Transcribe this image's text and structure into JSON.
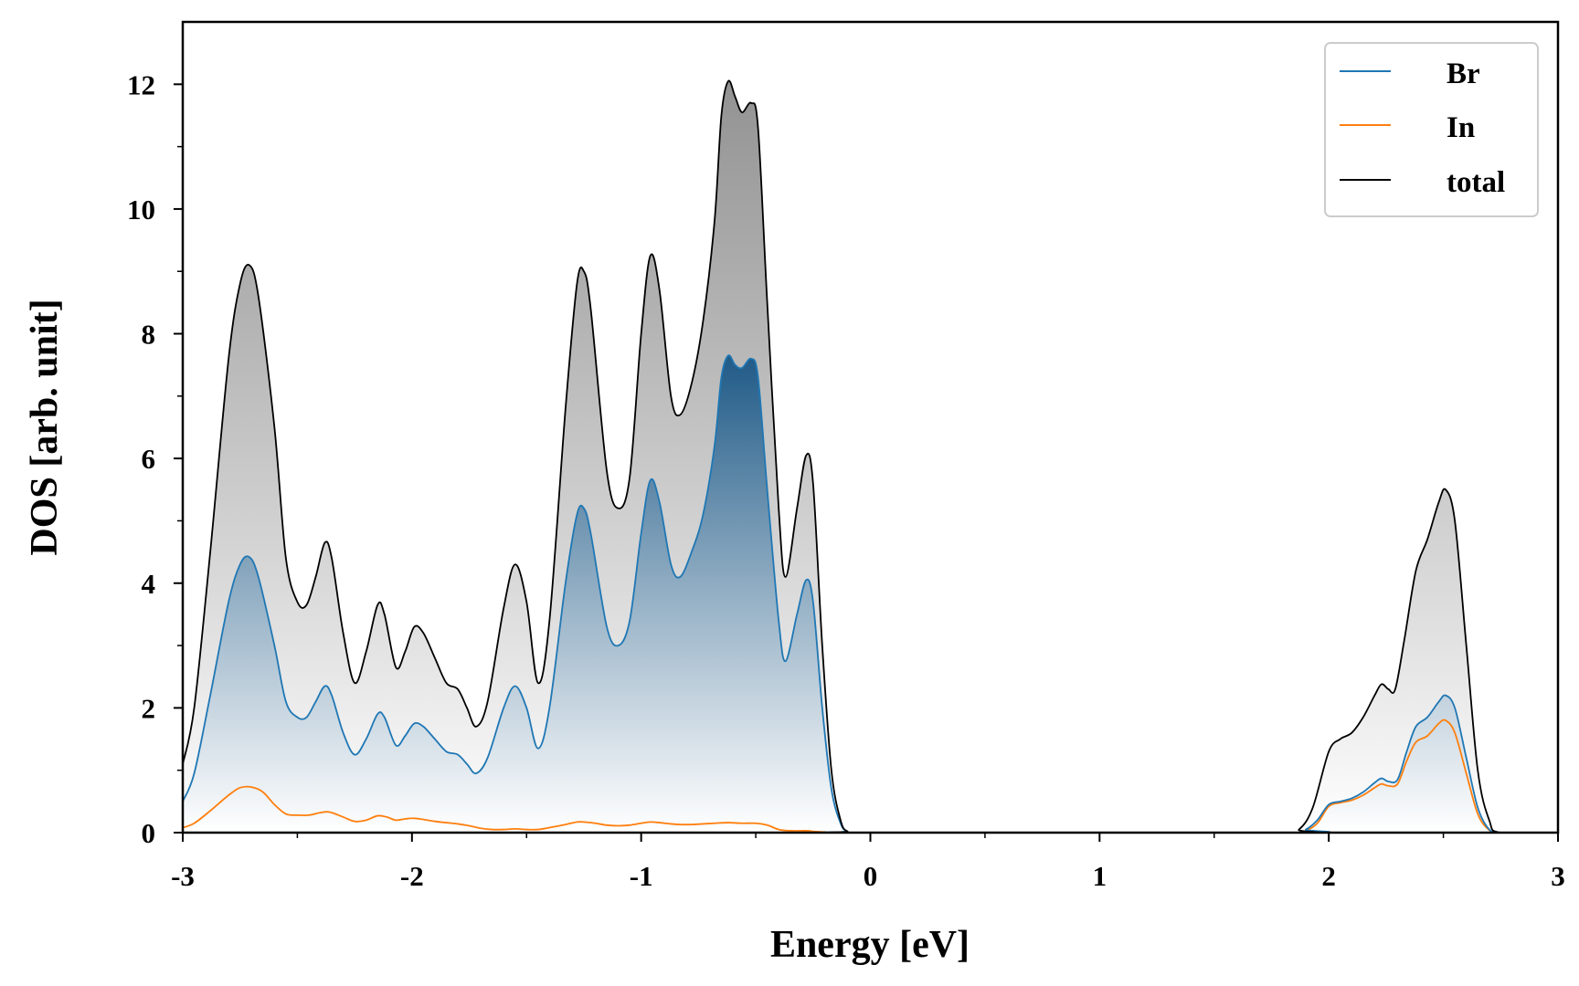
{
  "chart_data": {
    "type": "area",
    "xlabel": "Energy [eV]",
    "ylabel": "DOS [arb. unit]",
    "xlim": [
      -3,
      3
    ],
    "ylim": [
      0,
      13
    ],
    "x_ticks": [
      -3,
      -2,
      -1,
      0,
      1,
      2,
      3
    ],
    "y_ticks": [
      0,
      2,
      4,
      6,
      8,
      10,
      12
    ],
    "x_tick_labels": [
      "-3",
      "-2",
      "-1",
      "0",
      "1",
      "2",
      "3"
    ],
    "y_tick_labels": [
      "0",
      "2",
      "4",
      "6",
      "8",
      "10",
      "12"
    ],
    "grid": false,
    "legend_position": "top-right",
    "legend": [
      "Br",
      "In",
      "total"
    ],
    "series": [
      {
        "name": "total",
        "color": "#000000",
        "fill": "gray-gradient",
        "points": [
          [
            -3.0,
            1.1
          ],
          [
            -2.95,
            2.0
          ],
          [
            -2.88,
            4.5
          ],
          [
            -2.8,
            7.6
          ],
          [
            -2.75,
            8.8
          ],
          [
            -2.71,
            9.1
          ],
          [
            -2.67,
            8.6
          ],
          [
            -2.6,
            6.5
          ],
          [
            -2.55,
            4.4
          ],
          [
            -2.5,
            3.7
          ],
          [
            -2.46,
            3.65
          ],
          [
            -2.42,
            4.1
          ],
          [
            -2.38,
            4.65
          ],
          [
            -2.35,
            4.4
          ],
          [
            -2.3,
            3.2
          ],
          [
            -2.25,
            2.4
          ],
          [
            -2.2,
            2.9
          ],
          [
            -2.15,
            3.65
          ],
          [
            -2.12,
            3.5
          ],
          [
            -2.07,
            2.65
          ],
          [
            -2.03,
            2.9
          ],
          [
            -1.99,
            3.3
          ],
          [
            -1.95,
            3.2
          ],
          [
            -1.9,
            2.8
          ],
          [
            -1.85,
            2.4
          ],
          [
            -1.8,
            2.3
          ],
          [
            -1.76,
            2.0
          ],
          [
            -1.72,
            1.7
          ],
          [
            -1.67,
            2.1
          ],
          [
            -1.6,
            3.6
          ],
          [
            -1.55,
            4.3
          ],
          [
            -1.5,
            3.7
          ],
          [
            -1.45,
            2.4
          ],
          [
            -1.4,
            3.4
          ],
          [
            -1.33,
            6.8
          ],
          [
            -1.28,
            8.8
          ],
          [
            -1.25,
            9.0
          ],
          [
            -1.22,
            8.4
          ],
          [
            -1.15,
            5.8
          ],
          [
            -1.1,
            5.2
          ],
          [
            -1.05,
            5.7
          ],
          [
            -1.0,
            8.0
          ],
          [
            -0.96,
            9.25
          ],
          [
            -0.92,
            8.7
          ],
          [
            -0.87,
            7.0
          ],
          [
            -0.83,
            6.7
          ],
          [
            -0.78,
            7.2
          ],
          [
            -0.73,
            8.2
          ],
          [
            -0.68,
            9.8
          ],
          [
            -0.65,
            11.5
          ],
          [
            -0.62,
            12.05
          ],
          [
            -0.59,
            11.8
          ],
          [
            -0.56,
            11.55
          ],
          [
            -0.52,
            11.7
          ],
          [
            -0.49,
            11.3
          ],
          [
            -0.45,
            8.5
          ],
          [
            -0.4,
            5.2
          ],
          [
            -0.37,
            4.1
          ],
          [
            -0.32,
            5.2
          ],
          [
            -0.28,
            6.05
          ],
          [
            -0.25,
            5.6
          ],
          [
            -0.21,
            3.0
          ],
          [
            -0.17,
            1.0
          ],
          [
            -0.13,
            0.2
          ],
          [
            -0.1,
            0.02
          ],
          [
            -0.05,
            0.0
          ],
          [
            1.8,
            0.0
          ],
          [
            1.87,
            0.05
          ],
          [
            1.93,
            0.4
          ],
          [
            2.0,
            1.3
          ],
          [
            2.05,
            1.5
          ],
          [
            2.1,
            1.6
          ],
          [
            2.15,
            1.85
          ],
          [
            2.2,
            2.2
          ],
          [
            2.23,
            2.38
          ],
          [
            2.26,
            2.3
          ],
          [
            2.29,
            2.3
          ],
          [
            2.33,
            3.1
          ],
          [
            2.38,
            4.2
          ],
          [
            2.43,
            4.7
          ],
          [
            2.48,
            5.3
          ],
          [
            2.51,
            5.5
          ],
          [
            2.55,
            5.0
          ],
          [
            2.6,
            3.0
          ],
          [
            2.65,
            1.0
          ],
          [
            2.7,
            0.2
          ],
          [
            2.75,
            0.0
          ],
          [
            3.0,
            0.0
          ]
        ]
      },
      {
        "name": "Br",
        "color": "#1f77b4",
        "fill": "blue-gradient",
        "points": [
          [
            -3.0,
            0.5
          ],
          [
            -2.95,
            0.95
          ],
          [
            -2.88,
            2.2
          ],
          [
            -2.8,
            3.7
          ],
          [
            -2.75,
            4.3
          ],
          [
            -2.71,
            4.42
          ],
          [
            -2.67,
            4.1
          ],
          [
            -2.6,
            3.0
          ],
          [
            -2.55,
            2.1
          ],
          [
            -2.5,
            1.85
          ],
          [
            -2.46,
            1.85
          ],
          [
            -2.42,
            2.1
          ],
          [
            -2.38,
            2.35
          ],
          [
            -2.35,
            2.2
          ],
          [
            -2.3,
            1.6
          ],
          [
            -2.25,
            1.25
          ],
          [
            -2.2,
            1.5
          ],
          [
            -2.15,
            1.9
          ],
          [
            -2.12,
            1.85
          ],
          [
            -2.07,
            1.4
          ],
          [
            -2.03,
            1.55
          ],
          [
            -1.99,
            1.75
          ],
          [
            -1.95,
            1.7
          ],
          [
            -1.9,
            1.5
          ],
          [
            -1.85,
            1.3
          ],
          [
            -1.8,
            1.25
          ],
          [
            -1.76,
            1.1
          ],
          [
            -1.72,
            0.95
          ],
          [
            -1.67,
            1.2
          ],
          [
            -1.6,
            2.0
          ],
          [
            -1.55,
            2.35
          ],
          [
            -1.5,
            2.0
          ],
          [
            -1.45,
            1.35
          ],
          [
            -1.4,
            2.0
          ],
          [
            -1.33,
            4.0
          ],
          [
            -1.28,
            5.1
          ],
          [
            -1.25,
            5.2
          ],
          [
            -1.22,
            4.8
          ],
          [
            -1.15,
            3.3
          ],
          [
            -1.1,
            3.0
          ],
          [
            -1.05,
            3.4
          ],
          [
            -1.0,
            4.8
          ],
          [
            -0.96,
            5.65
          ],
          [
            -0.92,
            5.3
          ],
          [
            -0.87,
            4.3
          ],
          [
            -0.83,
            4.1
          ],
          [
            -0.78,
            4.5
          ],
          [
            -0.73,
            5.1
          ],
          [
            -0.68,
            6.2
          ],
          [
            -0.65,
            7.3
          ],
          [
            -0.62,
            7.65
          ],
          [
            -0.59,
            7.5
          ],
          [
            -0.56,
            7.45
          ],
          [
            -0.52,
            7.6
          ],
          [
            -0.49,
            7.3
          ],
          [
            -0.45,
            5.5
          ],
          [
            -0.4,
            3.4
          ],
          [
            -0.37,
            2.75
          ],
          [
            -0.32,
            3.5
          ],
          [
            -0.28,
            4.05
          ],
          [
            -0.25,
            3.7
          ],
          [
            -0.21,
            2.0
          ],
          [
            -0.17,
            0.7
          ],
          [
            -0.13,
            0.15
          ],
          [
            -0.1,
            0.02
          ],
          [
            -0.05,
            0.0
          ],
          [
            1.85,
            0.0
          ],
          [
            1.9,
            0.05
          ],
          [
            1.95,
            0.2
          ],
          [
            2.0,
            0.45
          ],
          [
            2.05,
            0.5
          ],
          [
            2.1,
            0.55
          ],
          [
            2.15,
            0.65
          ],
          [
            2.2,
            0.8
          ],
          [
            2.23,
            0.87
          ],
          [
            2.26,
            0.82
          ],
          [
            2.3,
            0.85
          ],
          [
            2.34,
            1.3
          ],
          [
            2.38,
            1.7
          ],
          [
            2.43,
            1.85
          ],
          [
            2.48,
            2.1
          ],
          [
            2.51,
            2.2
          ],
          [
            2.55,
            2.0
          ],
          [
            2.6,
            1.2
          ],
          [
            2.65,
            0.4
          ],
          [
            2.7,
            0.05
          ],
          [
            2.75,
            0.0
          ],
          [
            3.0,
            0.0
          ]
        ]
      },
      {
        "name": "In",
        "color": "#ff7f0e",
        "fill": "none",
        "points": [
          [
            -3.0,
            0.08
          ],
          [
            -2.95,
            0.15
          ],
          [
            -2.88,
            0.35
          ],
          [
            -2.8,
            0.6
          ],
          [
            -2.75,
            0.72
          ],
          [
            -2.7,
            0.73
          ],
          [
            -2.65,
            0.65
          ],
          [
            -2.6,
            0.45
          ],
          [
            -2.55,
            0.3
          ],
          [
            -2.5,
            0.28
          ],
          [
            -2.45,
            0.28
          ],
          [
            -2.4,
            0.32
          ],
          [
            -2.36,
            0.33
          ],
          [
            -2.3,
            0.25
          ],
          [
            -2.25,
            0.18
          ],
          [
            -2.2,
            0.2
          ],
          [
            -2.15,
            0.27
          ],
          [
            -2.11,
            0.25
          ],
          [
            -2.07,
            0.2
          ],
          [
            -2.03,
            0.22
          ],
          [
            -1.99,
            0.23
          ],
          [
            -1.95,
            0.21
          ],
          [
            -1.9,
            0.18
          ],
          [
            -1.85,
            0.16
          ],
          [
            -1.8,
            0.14
          ],
          [
            -1.75,
            0.11
          ],
          [
            -1.7,
            0.07
          ],
          [
            -1.65,
            0.05
          ],
          [
            -1.6,
            0.05
          ],
          [
            -1.55,
            0.06
          ],
          [
            -1.5,
            0.05
          ],
          [
            -1.45,
            0.05
          ],
          [
            -1.4,
            0.08
          ],
          [
            -1.33,
            0.13
          ],
          [
            -1.28,
            0.17
          ],
          [
            -1.25,
            0.17
          ],
          [
            -1.2,
            0.15
          ],
          [
            -1.15,
            0.12
          ],
          [
            -1.1,
            0.11
          ],
          [
            -1.05,
            0.12
          ],
          [
            -1.0,
            0.15
          ],
          [
            -0.96,
            0.17
          ],
          [
            -0.92,
            0.16
          ],
          [
            -0.87,
            0.14
          ],
          [
            -0.83,
            0.13
          ],
          [
            -0.78,
            0.13
          ],
          [
            -0.73,
            0.14
          ],
          [
            -0.68,
            0.15
          ],
          [
            -0.62,
            0.16
          ],
          [
            -0.56,
            0.15
          ],
          [
            -0.5,
            0.15
          ],
          [
            -0.45,
            0.12
          ],
          [
            -0.4,
            0.05
          ],
          [
            -0.35,
            0.03
          ],
          [
            -0.28,
            0.03
          ],
          [
            -0.25,
            0.02
          ],
          [
            -0.2,
            0.01
          ],
          [
            -0.15,
            0.0
          ],
          [
            1.85,
            0.0
          ],
          [
            1.9,
            0.03
          ],
          [
            1.95,
            0.15
          ],
          [
            2.0,
            0.42
          ],
          [
            2.05,
            0.48
          ],
          [
            2.1,
            0.52
          ],
          [
            2.15,
            0.6
          ],
          [
            2.2,
            0.72
          ],
          [
            2.23,
            0.78
          ],
          [
            2.26,
            0.75
          ],
          [
            2.3,
            0.78
          ],
          [
            2.34,
            1.15
          ],
          [
            2.38,
            1.45
          ],
          [
            2.43,
            1.55
          ],
          [
            2.48,
            1.75
          ],
          [
            2.51,
            1.8
          ],
          [
            2.55,
            1.6
          ],
          [
            2.6,
            0.95
          ],
          [
            2.65,
            0.3
          ],
          [
            2.7,
            0.04
          ],
          [
            2.75,
            0.0
          ],
          [
            3.0,
            0.0
          ]
        ]
      }
    ]
  }
}
